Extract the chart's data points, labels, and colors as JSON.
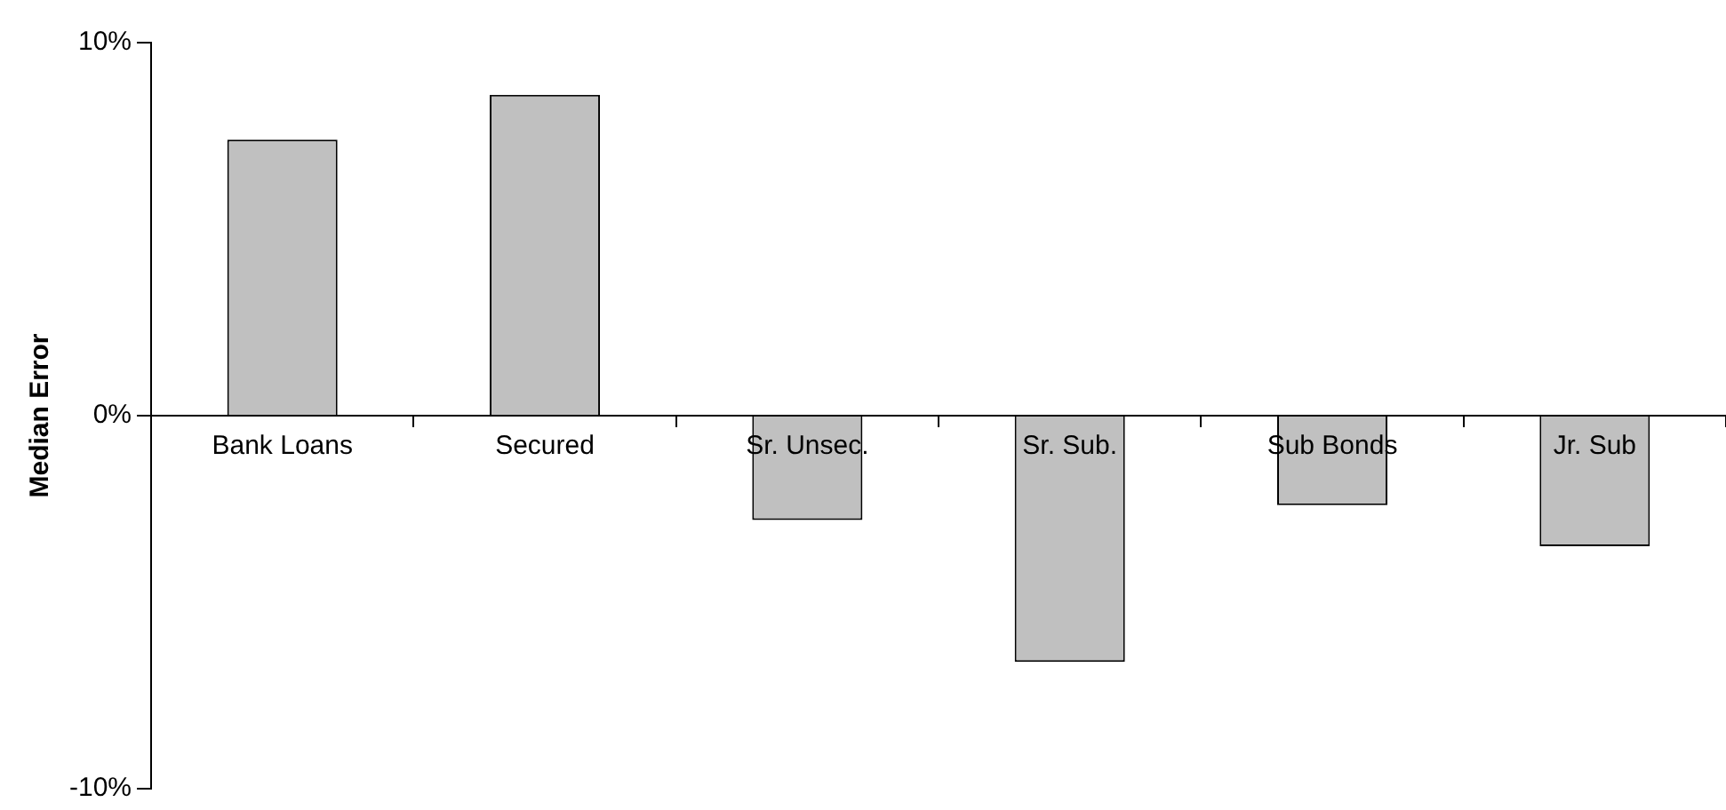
{
  "chart_data": {
    "type": "bar",
    "ylabel": "Median Error",
    "categories": [
      "Bank Loans",
      "Secured",
      "Sr. Unsec.",
      "Sr. Sub.",
      "Sub Bonds",
      "Jr. Sub"
    ],
    "values": [
      7.4,
      8.6,
      -2.8,
      -6.6,
      -2.4,
      -3.5
    ],
    "color": "#c0c0c0",
    "ylim": [
      -10,
      10
    ],
    "yticks": [
      {
        "value": -10,
        "label": "-10%"
      },
      {
        "value": 0,
        "label": "0%"
      },
      {
        "value": 10,
        "label": "10%"
      }
    ],
    "grid": false,
    "legend": false
  }
}
